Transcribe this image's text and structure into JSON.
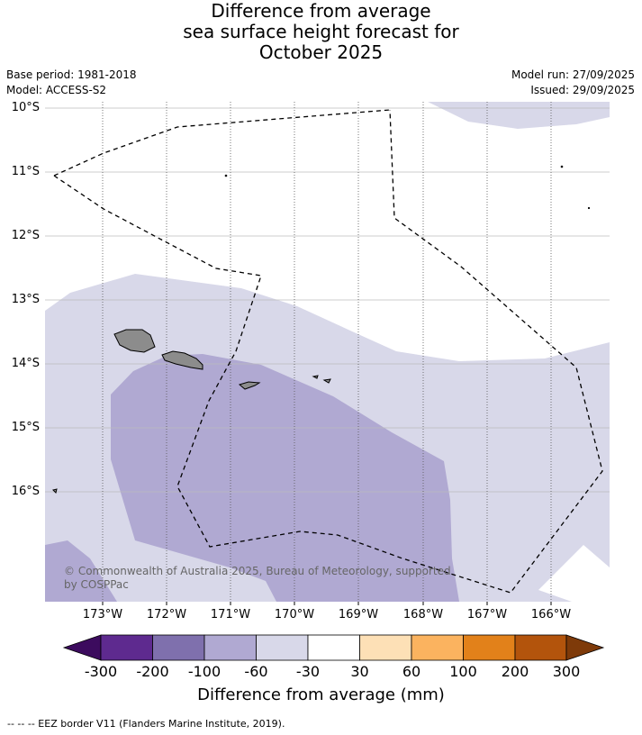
{
  "title": {
    "line1": "Difference from average",
    "line2": "sea surface height forecast for",
    "line3": "October 2025"
  },
  "meta": {
    "base_period": "Base period: 1981-2018",
    "model": "Model: ACCESS-S2",
    "model_run": "Model run: 27/09/2025",
    "issued": "Issued: 29/09/2025"
  },
  "map": {
    "lat_labels": [
      "10°S",
      "11°S",
      "12°S",
      "13°S",
      "14°S",
      "15°S",
      "16°S"
    ],
    "lon_labels": [
      "173°W",
      "172°W",
      "171°W",
      "170°W",
      "169°W",
      "168°W",
      "167°W",
      "166°W"
    ],
    "copyright_line1": "© Commonwealth of Australia 2025, Bureau of Meteorology, supported",
    "copyright_line2": "by COSPPac",
    "colors": {
      "pale_lavender": "#d8d8e9",
      "mid_purple": "#b0a9d2",
      "land": "#8c8c8c",
      "ocean_white": "#ffffff"
    }
  },
  "colorbar": {
    "ticks": [
      "-300",
      "-200",
      "-100",
      "-60",
      "-30",
      "30",
      "60",
      "100",
      "200",
      "300"
    ],
    "label": "Difference from average (mm)",
    "colors": [
      "#3c0b5e",
      "#5e2a8f",
      "#7f70ad",
      "#b0a9d2",
      "#d8d8e9",
      "#ffffff",
      "#fde0b6",
      "#fbb35f",
      "#e2811a",
      "#b3540c",
      "#7e3a09"
    ]
  },
  "footer": {
    "legend_text": "--  --  -- EEZ border V11 (Flanders Marine Institute, 2019)."
  }
}
